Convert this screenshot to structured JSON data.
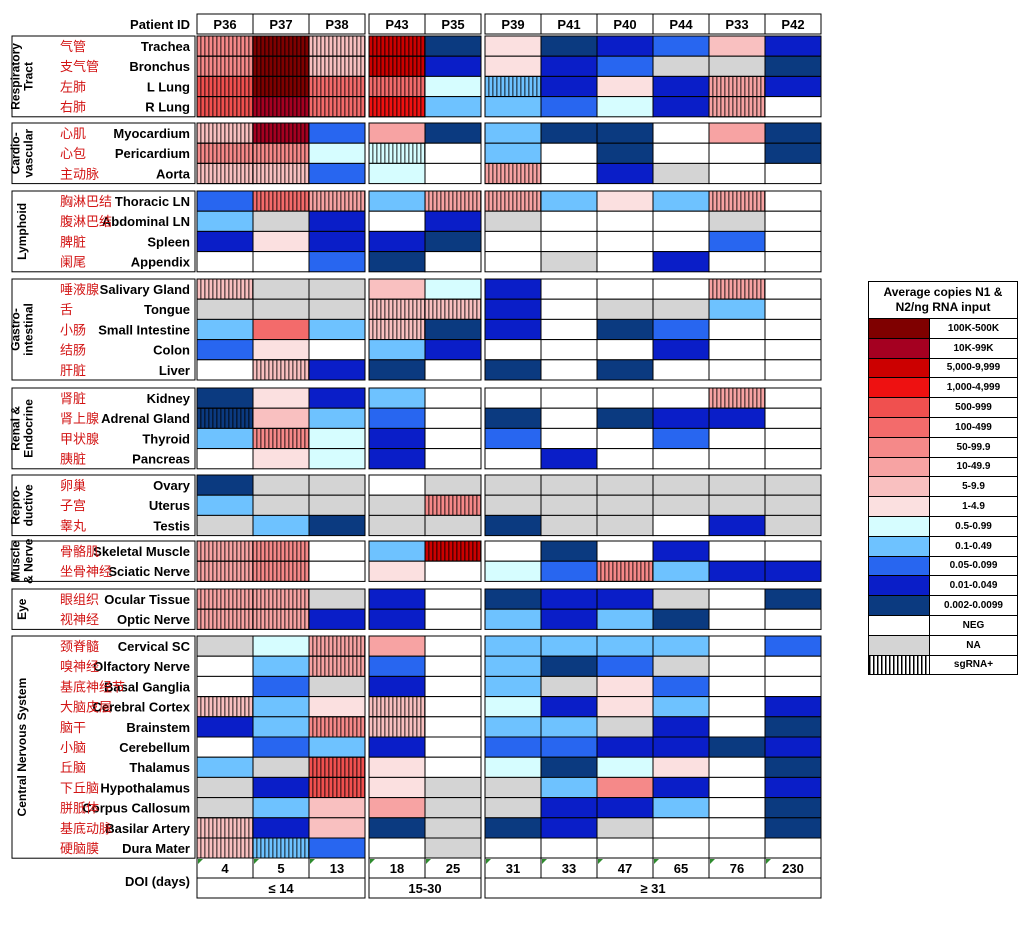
{
  "chart_data": {
    "type": "heatmap",
    "title": "",
    "header_label": "Patient ID",
    "patients": [
      "P36",
      "P37",
      "P38",
      "P43",
      "P35",
      "P39",
      "P41",
      "P40",
      "P44",
      "P33",
      "P42"
    ],
    "doi_label": "DOI (days)",
    "doi": [
      "4",
      "5",
      "13",
      "18",
      "25",
      "31",
      "33",
      "47",
      "65",
      "76",
      "230"
    ],
    "doi_groups": [
      {
        "label": "≤ 14",
        "patients": [
          "P36",
          "P37",
          "P38"
        ]
      },
      {
        "label": "15-30",
        "patients": [
          "P43",
          "P35"
        ]
      },
      {
        "label": "≥ 31",
        "patients": [
          "P39",
          "P41",
          "P40",
          "P44",
          "P33",
          "P42"
        ]
      }
    ],
    "legend_title": "Average copies N1 & N2/ng RNA input",
    "legend": [
      {
        "key": "r1",
        "label": "100K-500K",
        "color": "#7f0000"
      },
      {
        "key": "r2",
        "label": "10K-99K",
        "color": "#a50021"
      },
      {
        "key": "r3",
        "label": "5,000-9,999",
        "color": "#cc0000"
      },
      {
        "key": "r4",
        "label": "1,000-4,999",
        "color": "#ee1111"
      },
      {
        "key": "r5",
        "label": "500-999",
        "color": "#f0504f"
      },
      {
        "key": "r6",
        "label": "100-499",
        "color": "#f36b6b"
      },
      {
        "key": "r7",
        "label": "50-99.9",
        "color": "#f58989"
      },
      {
        "key": "r8",
        "label": "10-49.9",
        "color": "#f7a3a3"
      },
      {
        "key": "r9",
        "label": "5-9.9",
        "color": "#f9c0c0"
      },
      {
        "key": "r10",
        "label": "1-4.9",
        "color": "#fbe0e0"
      },
      {
        "key": "b1",
        "label": "0.5-0.99",
        "color": "#d6fdff"
      },
      {
        "key": "b2",
        "label": "0.1-0.49",
        "color": "#6ec2ff"
      },
      {
        "key": "b3",
        "label": "0.05-0.099",
        "color": "#2866f0"
      },
      {
        "key": "b4",
        "label": "0.01-0.049",
        "color": "#0a1ec8"
      },
      {
        "key": "b5",
        "label": "0.002-0.0099",
        "color": "#0b3a80"
      },
      {
        "key": "neg",
        "label": "NEG",
        "color": "#ffffff"
      },
      {
        "key": "na",
        "label": "NA",
        "color": "#d4d4d4"
      },
      {
        "key": "sg",
        "label": "sgRNA+",
        "pattern": "stripes",
        "color": "#ffffff"
      }
    ],
    "groups": [
      {
        "name": "Respiratory Tract",
        "lines": [
          "Respiratory",
          "Tract"
        ],
        "rows": [
          {
            "tissue": "Trachea",
            "cn": "气管",
            "cells": [
              "s:r7",
              "s:r1",
              "s:r9",
              "s:r3",
              "b5",
              "r10",
              "b5",
              "b4",
              "b3",
              "r9",
              "b4"
            ]
          },
          {
            "tissue": "Bronchus",
            "cn": "支气管",
            "cells": [
              "s:r7",
              "s:r1",
              "s:r9",
              "s:r3",
              "b4",
              "r10",
              "b4",
              "b3",
              "na",
              "na",
              "b5"
            ]
          },
          {
            "tissue": "L Lung",
            "cn": "左肺",
            "cells": [
              "s:r5",
              "s:r1",
              "s:r6",
              "s:r6",
              "b1",
              "s:b2",
              "b4",
              "r10",
              "b4",
              "s:r8",
              "b4"
            ]
          },
          {
            "tissue": "R Lung",
            "cn": "右肺",
            "cells": [
              "s:r5",
              "s:r2",
              "s:r6",
              "s:r4",
              "b2",
              "b2",
              "b3",
              "b1",
              "b4",
              "s:r8",
              "neg"
            ]
          }
        ]
      },
      {
        "name": "Cardiovascular",
        "lines": [
          "Cardio-",
          "vascular"
        ],
        "rows": [
          {
            "tissue": "Myocardium",
            "cn": "心肌",
            "cells": [
              "s:r9",
              "s:r2",
              "b3",
              "r8",
              "b5",
              "b2",
              "b5",
              "b5",
              "neg",
              "r8",
              "b5"
            ]
          },
          {
            "tissue": "Pericardium",
            "cn": "心包",
            "cells": [
              "s:r7",
              "s:r7",
              "b1",
              "s:b1",
              "neg",
              "b2",
              "neg",
              "b5",
              "neg",
              "neg",
              "b5"
            ]
          },
          {
            "tissue": "Aorta",
            "cn": "主动脉",
            "cells": [
              "s:r9",
              "s:r9",
              "b3",
              "b1",
              "neg",
              "s:r8",
              "neg",
              "b4",
              "na",
              "neg",
              "neg"
            ]
          }
        ]
      },
      {
        "name": "Lymphoid",
        "lines": [
          "Lymphoid"
        ],
        "rows": [
          {
            "tissue": "Thoracic LN",
            "cn": "胸淋巴结",
            "cells": [
              "b3",
              "s:r6",
              "s:r8",
              "b2",
              "s:r8",
              "s:r8",
              "b2",
              "r10",
              "b2",
              "s:r8",
              "neg"
            ]
          },
          {
            "tissue": "Abdominal LN",
            "cn": "腹淋巴结",
            "cells": [
              "b2",
              "na",
              "b4",
              "neg",
              "b4",
              "na",
              "neg",
              "neg",
              "neg",
              "na",
              "neg"
            ]
          },
          {
            "tissue": "Spleen",
            "cn": "脾脏",
            "cells": [
              "b4",
              "r10",
              "b4",
              "b4",
              "b5",
              "neg",
              "neg",
              "neg",
              "neg",
              "b3",
              "neg"
            ]
          },
          {
            "tissue": "Appendix",
            "cn": "阑尾",
            "cells": [
              "neg",
              "neg",
              "b3",
              "b5",
              "neg",
              "neg",
              "na",
              "neg",
              "b4",
              "neg",
              "neg"
            ]
          }
        ]
      },
      {
        "name": "Gastrointestinal",
        "lines": [
          "Gastro-",
          "intestinal"
        ],
        "rows": [
          {
            "tissue": "Salivary Gland",
            "cn": "唾液腺",
            "cells": [
              "s:r9",
              "na",
              "na",
              "r9",
              "b1",
              "b4",
              "neg",
              "neg",
              "neg",
              "s:r8",
              "neg"
            ]
          },
          {
            "tissue": "Tongue",
            "cn": "舌",
            "cells": [
              "na",
              "na",
              "na",
              "s:r9",
              "s:r9",
              "b4",
              "neg",
              "na",
              "na",
              "b2",
              "neg"
            ]
          },
          {
            "tissue": "Small Intestine",
            "cn": "小肠",
            "cells": [
              "b2",
              "r6",
              "b2",
              "s:r9",
              "b5",
              "b4",
              "neg",
              "b5",
              "b3",
              "neg",
              "neg"
            ]
          },
          {
            "tissue": "Colon",
            "cn": "结肠",
            "cells": [
              "b3",
              "r10",
              "neg",
              "b2",
              "b4",
              "neg",
              "neg",
              "neg",
              "b4",
              "neg",
              "neg"
            ]
          },
          {
            "tissue": "Liver",
            "cn": "肝脏",
            "cells": [
              "neg",
              "s:r9",
              "b4",
              "b5",
              "neg",
              "b5",
              "neg",
              "b5",
              "neg",
              "neg",
              "neg"
            ]
          }
        ]
      },
      {
        "name": "Renal & Endocrine",
        "lines": [
          "Renal &",
          "Endocrine"
        ],
        "rows": [
          {
            "tissue": "Kidney",
            "cn": "肾脏",
            "cells": [
              "b5",
              "r10",
              "b4",
              "b2",
              "neg",
              "neg",
              "neg",
              "neg",
              "neg",
              "s:r8",
              "neg"
            ]
          },
          {
            "tissue": "Adrenal Gland",
            "cn": "肾上腺",
            "cells": [
              "s:b5",
              "r9",
              "b2",
              "b3",
              "neg",
              "b5",
              "neg",
              "b5",
              "b4",
              "b4",
              "neg"
            ]
          },
          {
            "tissue": "Thyroid",
            "cn": "甲状腺",
            "cells": [
              "b2",
              "s:r7",
              "b1",
              "b4",
              "neg",
              "b3",
              "neg",
              "neg",
              "b3",
              "neg",
              "neg"
            ]
          },
          {
            "tissue": "Pancreas",
            "cn": "胰脏",
            "cells": [
              "neg",
              "r10",
              "b1",
              "b4",
              "neg",
              "neg",
              "b4",
              "neg",
              "neg",
              "neg",
              "neg"
            ]
          }
        ]
      },
      {
        "name": "Reproductive",
        "lines": [
          "Repro-",
          "ductive"
        ],
        "rows": [
          {
            "tissue": "Ovary",
            "cn": "卵巢",
            "cells": [
              "b5",
              "na",
              "na",
              "neg",
              "na",
              "na",
              "na",
              "na",
              "na",
              "na",
              "na"
            ]
          },
          {
            "tissue": "Uterus",
            "cn": "子宫",
            "cells": [
              "b2",
              "na",
              "na",
              "na",
              "s:r7",
              "na",
              "na",
              "na",
              "na",
              "na",
              "na"
            ]
          },
          {
            "tissue": "Testis",
            "cn": "睾丸",
            "cells": [
              "na",
              "b2",
              "b5",
              "na",
              "na",
              "b5",
              "na",
              "na",
              "neg",
              "b4",
              "na"
            ]
          }
        ]
      },
      {
        "name": "Muscle & Nerve",
        "lines": [
          "Muscle",
          "& Nerve"
        ],
        "rows": [
          {
            "tissue": "Skeletal Muscle",
            "cn": "骨骼肌",
            "cells": [
              "s:r8",
              "s:r7",
              "neg",
              "b2",
              "s:r3",
              "neg",
              "b5",
              "neg",
              "b4",
              "neg",
              "neg"
            ]
          },
          {
            "tissue": "Sciatic Nerve",
            "cn": "坐骨神经",
            "cells": [
              "s:r8",
              "s:r7",
              "neg",
              "r10",
              "neg",
              "b1",
              "b3",
              "s:r7",
              "b2",
              "b4",
              "b4"
            ]
          }
        ]
      },
      {
        "name": "Eye",
        "lines": [
          "Eye"
        ],
        "rows": [
          {
            "tissue": "Ocular Tissue",
            "cn": "眼组织",
            "cells": [
              "s:r8",
              "s:r8",
              "na",
              "b4",
              "neg",
              "b5",
              "b4",
              "b4",
              "na",
              "neg",
              "b5"
            ]
          },
          {
            "tissue": "Optic Nerve",
            "cn": "视神经",
            "cells": [
              "s:r8",
              "s:r8",
              "b4",
              "b4",
              "neg",
              "b2",
              "b4",
              "b2",
              "b5",
              "neg",
              "neg"
            ]
          }
        ]
      },
      {
        "name": "Central Nervous System",
        "lines": [
          "Central Nervous System"
        ],
        "rows": [
          {
            "tissue": "Cervical SC",
            "cn": "颈脊髓",
            "cells": [
              "na",
              "b1",
              "s:r8",
              "r8",
              "neg",
              "b2",
              "b2",
              "b2",
              "b2",
              "neg",
              "b3"
            ]
          },
          {
            "tissue": "Olfactory Nerve",
            "cn": "嗅神经",
            "cells": [
              "neg",
              "b2",
              "s:r8",
              "b3",
              "neg",
              "b2",
              "b5",
              "b3",
              "na",
              "neg",
              "neg"
            ]
          },
          {
            "tissue": "Basal Ganglia",
            "cn": "基底神经节",
            "cells": [
              "neg",
              "b3",
              "na",
              "b4",
              "neg",
              "b2",
              "na",
              "r10",
              "b3",
              "neg",
              "neg"
            ]
          },
          {
            "tissue": "Cerebral Cortex",
            "cn": "大脑皮层",
            "cells": [
              "s:r9",
              "b2",
              "r10",
              "s:r9",
              "neg",
              "b1",
              "b4",
              "r10",
              "b2",
              "neg",
              "b4"
            ]
          },
          {
            "tissue": "Brainstem",
            "cn": "脑干",
            "cells": [
              "b4",
              "b2",
              "s:r7",
              "s:r9",
              "neg",
              "b2",
              "b2",
              "na",
              "b4",
              "neg",
              "b5"
            ]
          },
          {
            "tissue": "Cerebellum",
            "cn": "小脑",
            "cells": [
              "neg",
              "b3",
              "b2",
              "b4",
              "neg",
              "b3",
              "b3",
              "b4",
              "b4",
              "b5",
              "b4"
            ]
          },
          {
            "tissue": "Thalamus",
            "cn": "丘脑",
            "cells": [
              "b2",
              "na",
              "s:r5",
              "r10",
              "neg",
              "b1",
              "b5",
              "b1",
              "r10",
              "neg",
              "b5"
            ]
          },
          {
            "tissue": "Hypothalamus",
            "cn": "下丘脑",
            "cells": [
              "na",
              "b4",
              "s:r5",
              "r10",
              "na",
              "na",
              "b2",
              "r7",
              "b4",
              "neg",
              "b4"
            ]
          },
          {
            "tissue": "Corpus Callosum",
            "cn": "胼胝体",
            "cells": [
              "na",
              "b2",
              "r9",
              "r8",
              "na",
              "na",
              "b4",
              "b4",
              "b2",
              "neg",
              "b5"
            ]
          },
          {
            "tissue": "Basilar Artery",
            "cn": "基底动脉",
            "cells": [
              "s:r9",
              "b4",
              "r9",
              "b5",
              "na",
              "b5",
              "b4",
              "na",
              "neg",
              "neg",
              "b5"
            ]
          },
          {
            "tissue": "Dura Mater",
            "cn": "硬脑膜",
            "cells": [
              "s:r9",
              "s:b2",
              "b3",
              "neg",
              "na",
              "neg",
              "neg",
              "neg",
              "neg",
              "neg",
              "neg"
            ]
          }
        ]
      }
    ]
  }
}
